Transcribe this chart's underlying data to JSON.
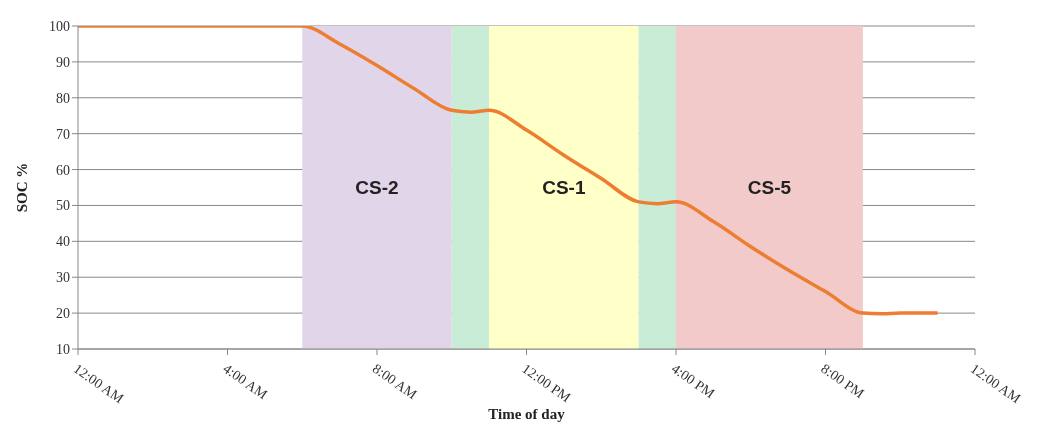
{
  "chart_data": {
    "type": "line",
    "xlabel": "Time of day",
    "ylabel": "SOC %",
    "x": [
      0,
      5.5,
      6,
      7,
      8,
      9,
      10,
      10.5,
      11,
      12,
      13,
      14,
      15,
      15.5,
      16,
      17,
      18,
      19,
      20,
      21,
      21.5,
      22,
      23
    ],
    "series": [
      {
        "color": "#ed7d31",
        "values": [
          100,
          100,
          100,
          95,
          89,
          82.5,
          76.5,
          76,
          76.5,
          71,
          64,
          57.5,
          51,
          50.5,
          51,
          45.5,
          38.5,
          32,
          26,
          20,
          19.8,
          20,
          20
        ]
      }
    ],
    "xlim": [
      0,
      24
    ],
    "xticks": [
      {
        "value": 0,
        "label": "12:00 AM"
      },
      {
        "value": 4,
        "label": "4:00 AM"
      },
      {
        "value": 8,
        "label": "8:00 AM"
      },
      {
        "value": 12,
        "label": "12:00 PM"
      },
      {
        "value": 16,
        "label": "4:00 PM"
      },
      {
        "value": 20,
        "label": "8:00 PM"
      },
      {
        "value": 24,
        "label": "12:00 AM"
      }
    ],
    "ylim": [
      10,
      100
    ],
    "yticks": [
      10,
      20,
      30,
      40,
      50,
      60,
      70,
      80,
      90,
      100
    ],
    "grid": "y",
    "legend": false,
    "marker": "none",
    "line_style": "solid",
    "bands": [
      {
        "axis": "x",
        "from": 6,
        "to": 10,
        "label": "CS-2",
        "color": "#e1d5ea"
      },
      {
        "axis": "x",
        "from": 10,
        "to": 11,
        "label": null,
        "color": "#c9ecd6"
      },
      {
        "axis": "x",
        "from": 11,
        "to": 15,
        "label": "CS-1",
        "color": "#ffffc8"
      },
      {
        "axis": "x",
        "from": 15,
        "to": 16,
        "label": null,
        "color": "#c9ecd6"
      },
      {
        "axis": "x",
        "from": 16,
        "to": 21,
        "label": "CS-5",
        "color": "#f2caca"
      }
    ]
  }
}
